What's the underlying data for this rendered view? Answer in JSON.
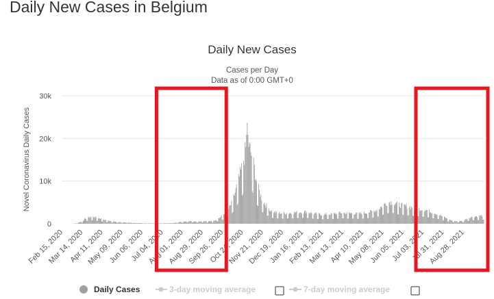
{
  "page": {
    "title": "Daily New Cases in Belgium"
  },
  "chart_data": {
    "type": "bar",
    "title": "Daily New Cases",
    "subtitle_line1": "Cases per Day",
    "subtitle_line2": "Data as of 0:00 GMT+0",
    "ylabel": "Novel Coronavirus Daily Cases",
    "xlabel": "",
    "ylim": [
      0,
      30000
    ],
    "y_ticks": [
      {
        "value": 0,
        "label": "0"
      },
      {
        "value": 10000,
        "label": "10k"
      },
      {
        "value": 20000,
        "label": "20k"
      },
      {
        "value": 30000,
        "label": "30k"
      }
    ],
    "x_range": [
      "2020-02-15",
      "2021-09-26"
    ],
    "x_tick_labels": [
      "Feb 15, 2020",
      "Mar 14, 2020",
      "Apr 11, 2020",
      "May 09, 2020",
      "Jun 06, 2020",
      "Jul 04, 2020",
      "Aug 01, 2020",
      "Aug 29, 2020",
      "Sep 26, 2020",
      "Oct 24, 2020",
      "Nov 21, 2020",
      "Dec 19, 2020",
      "Jan 16, 2021",
      "Feb 13, 2021",
      "Mar 13, 2021",
      "Apr 10, 2021",
      "May 08, 2021",
      "Jun 05, 2021",
      "Jul 03, 2021",
      "Jul 31, 2021",
      "Aug 28, 2021"
    ],
    "grid": "horizontal",
    "bar_color": "#a0a0a0",
    "series": [
      {
        "name": "Daily Cases",
        "weekly_average_values": [
          0,
          0,
          0,
          100,
          500,
          1200,
          1500,
          1300,
          1000,
          700,
          500,
          400,
          300,
          250,
          200,
          150,
          120,
          100,
          100,
          90,
          90,
          100,
          150,
          250,
          400,
          550,
          550,
          450,
          500,
          500,
          600,
          900,
          1700,
          2500,
          4500,
          8000,
          12000,
          17000,
          14000,
          8000,
          5000,
          3500,
          2500,
          2300,
          2200,
          2200,
          2300,
          2400,
          2500,
          2500,
          2200,
          2000,
          1900,
          2000,
          2000,
          2200,
          2300,
          2200,
          2200,
          2100,
          2200,
          2400,
          2600,
          3000,
          3800,
          4500,
          4600,
          4000,
          3800,
          3600,
          3400,
          3200,
          3000,
          2800,
          2400,
          2000,
          1500,
          1000,
          600,
          500,
          600,
          1200,
          1500,
          1600,
          1700,
          1700,
          1800,
          1800,
          1900,
          2000,
          2000,
          2100
        ],
        "peak_value": 23700,
        "peak_date": "2020-10-31"
      }
    ],
    "legend": {
      "placement": "bottom",
      "items": [
        {
          "label": "Daily Cases",
          "active": true,
          "color": "#a0a0a0"
        },
        {
          "label": "3-day moving average",
          "active": false,
          "color": "#cccccc"
        },
        {
          "label": "7-day moving average",
          "active": false,
          "color": "#cccccc"
        }
      ]
    },
    "annotations": [
      {
        "type": "highlight-box",
        "color": "#e8161f",
        "from": "2020-07-04",
        "to": "2020-09-26"
      },
      {
        "type": "highlight-box",
        "color": "#e8161f",
        "from": "2021-07-01",
        "to": "2021-09-26"
      }
    ]
  }
}
